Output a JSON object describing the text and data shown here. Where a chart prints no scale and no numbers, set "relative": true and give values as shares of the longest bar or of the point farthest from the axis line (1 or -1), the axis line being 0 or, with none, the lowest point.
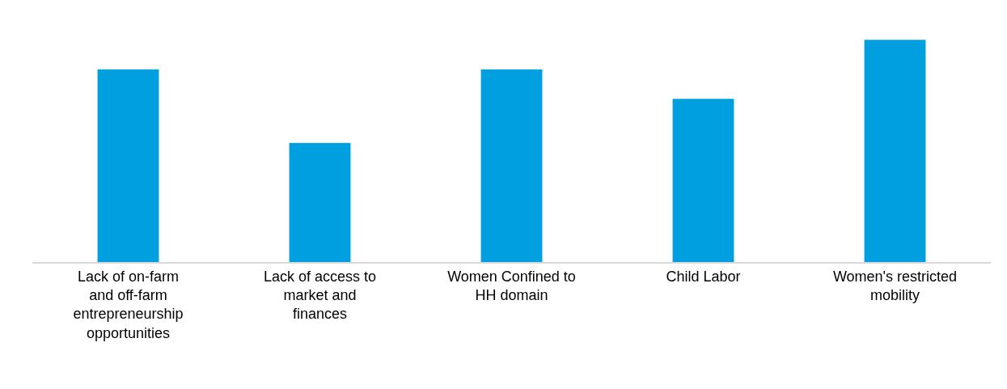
{
  "chart_data": {
    "type": "bar",
    "relative": true,
    "categories": [
      "Lack of on-farm and off-farm entrepreneurship opportunities",
      "Lack of access to market and finances",
      "Women Confined to HH domain",
      "Child Labor",
      "Women's restricted mobility"
    ],
    "values": [
      0.867,
      0.536,
      0.867,
      0.734,
      1
    ],
    "color": "#009fdf"
  }
}
